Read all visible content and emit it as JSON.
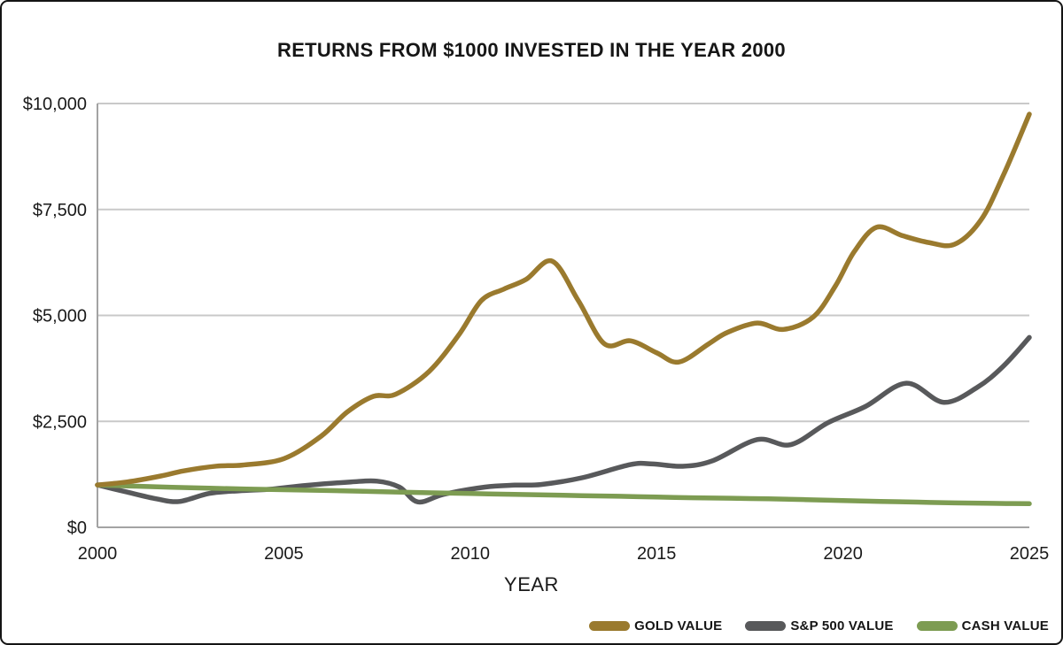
{
  "chart_data": {
    "type": "line",
    "title": "RETURNS FROM $1000 INVESTED IN THE YEAR 2000",
    "xlabel": "YEAR",
    "ylabel": "",
    "xlim": [
      2000,
      2025
    ],
    "ylim": [
      0,
      10000
    ],
    "grid": "horizontal",
    "legend_position": "bottom-right",
    "x_ticks": [
      {
        "value": 2000,
        "label": "2000"
      },
      {
        "value": 2005,
        "label": "2005"
      },
      {
        "value": 2010,
        "label": "2010"
      },
      {
        "value": 2015,
        "label": "2015"
      },
      {
        "value": 2020,
        "label": "2020"
      },
      {
        "value": 2025,
        "label": "2025"
      }
    ],
    "y_ticks": [
      {
        "value": 0,
        "label": "$0"
      },
      {
        "value": 2500,
        "label": "$2,500"
      },
      {
        "value": 5000,
        "label": "$5,000"
      },
      {
        "value": 7500,
        "label": "$7,500"
      },
      {
        "value": 10000,
        "label": "$10,000"
      }
    ],
    "series": [
      {
        "name": "S&P 500 VALUE",
        "color": "#58595b",
        "points": [
          [
            2000,
            1000
          ],
          [
            2000.8,
            830
          ],
          [
            2001.6,
            670
          ],
          [
            2002.2,
            610
          ],
          [
            2003,
            800
          ],
          [
            2003.8,
            862
          ],
          [
            2004.7,
            905
          ],
          [
            2005.6,
            990
          ],
          [
            2006.8,
            1070
          ],
          [
            2007.5,
            1090
          ],
          [
            2008.1,
            950
          ],
          [
            2008.6,
            600
          ],
          [
            2009.3,
            780
          ],
          [
            2010.4,
            950
          ],
          [
            2011.2,
            995
          ],
          [
            2011.9,
            1010
          ],
          [
            2013,
            1170
          ],
          [
            2014.3,
            1480
          ],
          [
            2014.9,
            1495
          ],
          [
            2015.7,
            1440
          ],
          [
            2016.5,
            1570
          ],
          [
            2017.7,
            2070
          ],
          [
            2018.6,
            1950
          ],
          [
            2019.6,
            2470
          ],
          [
            2020.6,
            2850
          ],
          [
            2021.7,
            3400
          ],
          [
            2022.7,
            2950
          ],
          [
            2023.6,
            3300
          ],
          [
            2024.3,
            3800
          ],
          [
            2025,
            4480
          ]
        ]
      },
      {
        "name": "CASH VALUE",
        "color": "#7d9c52",
        "points": [
          [
            2000,
            1000
          ],
          [
            2001,
            970
          ],
          [
            2002,
            945
          ],
          [
            2003,
            922
          ],
          [
            2004,
            903
          ],
          [
            2005,
            888
          ],
          [
            2006,
            872
          ],
          [
            2007,
            853
          ],
          [
            2008,
            832
          ],
          [
            2009,
            815
          ],
          [
            2010,
            798
          ],
          [
            2011,
            780
          ],
          [
            2012,
            764
          ],
          [
            2013,
            748
          ],
          [
            2014,
            732
          ],
          [
            2015,
            713
          ],
          [
            2016,
            698
          ],
          [
            2017,
            686
          ],
          [
            2018,
            672
          ],
          [
            2019,
            654
          ],
          [
            2020,
            630
          ],
          [
            2021,
            612
          ],
          [
            2022,
            594
          ],
          [
            2023,
            576
          ],
          [
            2024,
            565
          ],
          [
            2025,
            558
          ]
        ]
      },
      {
        "name": "GOLD VALUE",
        "color": "#9a7a2e",
        "points": [
          [
            2000,
            1000
          ],
          [
            2000.8,
            1070
          ],
          [
            2001.7,
            1210
          ],
          [
            2002.3,
            1330
          ],
          [
            2003.2,
            1445
          ],
          [
            2003.9,
            1470
          ],
          [
            2005,
            1620
          ],
          [
            2006,
            2150
          ],
          [
            2006.7,
            2720
          ],
          [
            2007.4,
            3090
          ],
          [
            2008,
            3140
          ],
          [
            2008.9,
            3680
          ],
          [
            2009.7,
            4550
          ],
          [
            2010.3,
            5350
          ],
          [
            2010.9,
            5620
          ],
          [
            2011.5,
            5850
          ],
          [
            2012.2,
            6280
          ],
          [
            2012.9,
            5350
          ],
          [
            2013.6,
            4330
          ],
          [
            2014.3,
            4400
          ],
          [
            2015,
            4120
          ],
          [
            2015.6,
            3900
          ],
          [
            2016.4,
            4330
          ],
          [
            2016.9,
            4600
          ],
          [
            2017.7,
            4820
          ],
          [
            2018.4,
            4670
          ],
          [
            2019.2,
            4960
          ],
          [
            2019.8,
            5700
          ],
          [
            2020.3,
            6500
          ],
          [
            2020.9,
            7080
          ],
          [
            2021.6,
            6880
          ],
          [
            2022.3,
            6720
          ],
          [
            2023,
            6680
          ],
          [
            2023.7,
            7250
          ],
          [
            2024.3,
            8300
          ],
          [
            2025,
            9750
          ]
        ]
      }
    ],
    "legend_order": [
      "GOLD VALUE",
      "S&P 500 VALUE",
      "CASH VALUE"
    ]
  },
  "style_colors": {
    "grid": "#c9c9c9",
    "axis": "#a3a3a3",
    "text": "#1a1a1a",
    "frame_border": "#141414"
  }
}
